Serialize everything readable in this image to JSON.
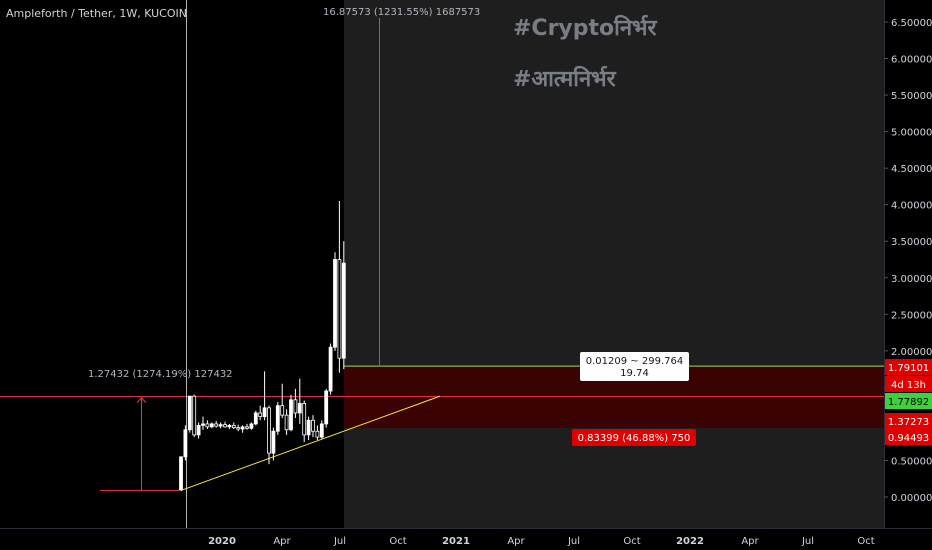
{
  "header": {
    "symbol": "Ampleforth / Tether, 1W, KUCOIN"
  },
  "watermark": {
    "line1": "#Cryptoनिर्भर",
    "line2": "#आत्मनिर्भर"
  },
  "colors": {
    "background": "#000000",
    "shade": "#1e1e1e",
    "candle": "#ffffff",
    "measure": "#f23645",
    "trend": "#ffeb3b",
    "stop": "#3d0000",
    "target": "#a5d66b",
    "last": "#4caf50",
    "axis_text": "#d1d4dc"
  },
  "chart_data": {
    "type": "candlestick",
    "y_ticks": [
      "6.50000",
      "6.00000",
      "5.50000",
      "5.00000",
      "4.50000",
      "4.00000",
      "3.50000",
      "3.00000",
      "2.50000",
      "2.00000",
      "1.50000",
      "1.00000",
      "0.50000",
      "0.00000"
    ],
    "x_ticks": [
      "2020",
      "Apr",
      "Jul",
      "Oct",
      "2021",
      "Apr",
      "Jul",
      "Oct",
      "2022",
      "Apr",
      "Jul",
      "Oct"
    ],
    "price_labels": {
      "target": "1.79101",
      "countdown": "4d 13h",
      "last": "1.77892",
      "entry": "1.37273",
      "stop": "0.94493"
    },
    "annotations": {
      "measure_up": "16.87573 (1231.55%) 1687573",
      "measure_left": "1.27432 (1274.19%) 127432",
      "position_stop": "0.83399 (46.88%) 750",
      "position_info_1": "0.01209 ~ 299.764",
      "position_info_2": "19.74"
    },
    "ylim": [
      0,
      6.5
    ],
    "candles": [
      {
        "o": 0.1,
        "h": 0.55,
        "l": 0.08,
        "c": 0.55
      },
      {
        "o": 0.55,
        "h": 0.98,
        "l": 0.5,
        "c": 0.92
      },
      {
        "o": 0.92,
        "h": 1.38,
        "l": 0.88,
        "c": 1.38
      },
      {
        "o": 1.38,
        "h": 1.4,
        "l": 0.82,
        "c": 0.85
      },
      {
        "o": 0.85,
        "h": 1.02,
        "l": 0.8,
        "c": 0.98
      },
      {
        "o": 0.98,
        "h": 1.1,
        "l": 0.92,
        "c": 1.0
      },
      {
        "o": 1.0,
        "h": 1.05,
        "l": 0.93,
        "c": 0.96
      },
      {
        "o": 0.96,
        "h": 1.02,
        "l": 0.94,
        "c": 1.0
      },
      {
        "o": 1.0,
        "h": 1.04,
        "l": 0.95,
        "c": 0.97
      },
      {
        "o": 0.97,
        "h": 1.02,
        "l": 0.94,
        "c": 0.99
      },
      {
        "o": 0.99,
        "h": 1.03,
        "l": 0.95,
        "c": 0.96
      },
      {
        "o": 0.96,
        "h": 1.0,
        "l": 0.93,
        "c": 0.98
      },
      {
        "o": 0.98,
        "h": 1.02,
        "l": 0.93,
        "c": 0.95
      },
      {
        "o": 0.95,
        "h": 0.99,
        "l": 0.9,
        "c": 0.93
      },
      {
        "o": 0.93,
        "h": 0.98,
        "l": 0.88,
        "c": 0.96
      },
      {
        "o": 0.96,
        "h": 1.0,
        "l": 0.92,
        "c": 0.94
      },
      {
        "o": 0.94,
        "h": 1.02,
        "l": 0.92,
        "c": 1.0
      },
      {
        "o": 1.0,
        "h": 1.18,
        "l": 0.98,
        "c": 1.15
      },
      {
        "o": 1.15,
        "h": 1.25,
        "l": 1.05,
        "c": 1.1
      },
      {
        "o": 1.1,
        "h": 1.72,
        "l": 1.05,
        "c": 1.22
      },
      {
        "o": 1.22,
        "h": 1.25,
        "l": 0.45,
        "c": 0.6
      },
      {
        "o": 0.6,
        "h": 0.95,
        "l": 0.5,
        "c": 0.9
      },
      {
        "o": 0.9,
        "h": 1.3,
        "l": 0.85,
        "c": 1.25
      },
      {
        "o": 1.25,
        "h": 1.55,
        "l": 1.08,
        "c": 1.12
      },
      {
        "o": 1.12,
        "h": 1.2,
        "l": 0.85,
        "c": 0.92
      },
      {
        "o": 0.92,
        "h": 1.4,
        "l": 0.9,
        "c": 1.33
      },
      {
        "o": 1.33,
        "h": 1.48,
        "l": 1.08,
        "c": 1.15
      },
      {
        "o": 1.15,
        "h": 1.62,
        "l": 1.0,
        "c": 1.28
      },
      {
        "o": 1.28,
        "h": 1.32,
        "l": 0.75,
        "c": 0.85
      },
      {
        "o": 0.85,
        "h": 1.1,
        "l": 0.78,
        "c": 1.05
      },
      {
        "o": 1.05,
        "h": 1.12,
        "l": 0.82,
        "c": 0.9
      },
      {
        "o": 0.9,
        "h": 0.98,
        "l": 0.78,
        "c": 0.82
      },
      {
        "o": 0.82,
        "h": 1.05,
        "l": 0.8,
        "c": 1.0
      },
      {
        "o": 1.0,
        "h": 1.48,
        "l": 0.95,
        "c": 1.45
      },
      {
        "o": 1.45,
        "h": 2.1,
        "l": 1.4,
        "c": 2.05
      },
      {
        "o": 2.05,
        "h": 3.35,
        "l": 2.0,
        "c": 3.25
      },
      {
        "o": 3.25,
        "h": 4.05,
        "l": 1.7,
        "c": 1.9
      },
      {
        "o": 1.9,
        "h": 3.5,
        "l": 1.75,
        "c": 3.2
      }
    ]
  }
}
